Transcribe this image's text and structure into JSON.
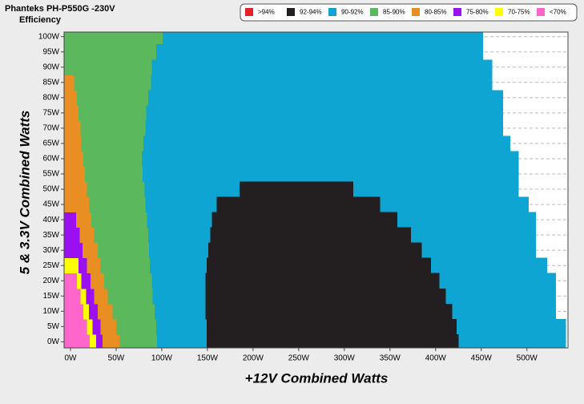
{
  "chart_data": {
    "type": "region",
    "title": "Phanteks PH-P550G -230V",
    "subtitle": "Efficiency",
    "x_label": "+12V Combined Watts",
    "y_label": "5 & 3.3V Combined Watts",
    "xlim": [
      -7,
      545
    ],
    "ylim": [
      -2,
      101.5
    ],
    "xticks": [
      {
        "value": 0,
        "label": "0W"
      },
      {
        "value": 50,
        "label": "50W"
      },
      {
        "value": 100,
        "label": "100W"
      },
      {
        "value": 150,
        "label": "150W"
      },
      {
        "value": 200,
        "label": "200W"
      },
      {
        "value": 250,
        "label": "250W"
      },
      {
        "value": 300,
        "label": "300W"
      },
      {
        "value": 350,
        "label": "350W"
      },
      {
        "value": 400,
        "label": "400W"
      },
      {
        "value": 450,
        "label": "450W"
      },
      {
        "value": 500,
        "label": "500W"
      }
    ],
    "yticks": [
      {
        "value": 0,
        "label": "0W"
      },
      {
        "value": 5,
        "label": "5W"
      },
      {
        "value": 10,
        "label": "10W"
      },
      {
        "value": 15,
        "label": "15W"
      },
      {
        "value": 20,
        "label": "20W"
      },
      {
        "value": 25,
        "label": "25W"
      },
      {
        "value": 30,
        "label": "30W"
      },
      {
        "value": 35,
        "label": "35W"
      },
      {
        "value": 40,
        "label": "40W"
      },
      {
        "value": 45,
        "label": "45W"
      },
      {
        "value": 50,
        "label": "50W"
      },
      {
        "value": 55,
        "label": "55W"
      },
      {
        "value": 60,
        "label": "60W"
      },
      {
        "value": 65,
        "label": "65W"
      },
      {
        "value": 70,
        "label": "70W"
      },
      {
        "value": 75,
        "label": "75W"
      },
      {
        "value": 80,
        "label": "80W"
      },
      {
        "value": 85,
        "label": "85W"
      },
      {
        "value": 90,
        "label": "90W"
      },
      {
        "value": 95,
        "label": "95W"
      },
      {
        "value": 100,
        "label": "100W"
      }
    ],
    "grid": true,
    "y": [
      0,
      5,
      10,
      15,
      20,
      25,
      30,
      35,
      40,
      45,
      50,
      55,
      60,
      65,
      70,
      75,
      80,
      85,
      90,
      95,
      100
    ],
    "series": [
      {
        "name": ">94%",
        "color": "#e8202a",
        "x_from": [
          null,
          null,
          null,
          null,
          null,
          null,
          null,
          null,
          null,
          null,
          null,
          null,
          null,
          null,
          null,
          null,
          null,
          null,
          null,
          null,
          null
        ],
        "x_to": [
          null,
          null,
          null,
          null,
          null,
          null,
          null,
          null,
          null,
          null,
          null,
          null,
          null,
          null,
          null,
          null,
          null,
          null,
          null,
          null,
          null
        ]
      },
      {
        "name": "92-94%",
        "color": "#231f20",
        "x_from": [
          149,
          149,
          148,
          148,
          148,
          149,
          151,
          153,
          155,
          160,
          185,
          null,
          null,
          null,
          null,
          null,
          null,
          null,
          null,
          null,
          null
        ],
        "x_to": [
          425,
          423,
          418,
          411,
          404,
          395,
          385,
          373,
          358,
          339,
          310,
          null,
          null,
          null,
          null,
          null,
          null,
          null,
          null,
          null,
          null
        ]
      },
      {
        "name": "90-92%",
        "color": "#0ea5d2",
        "x_from": [
          95,
          94,
          92,
          90,
          89,
          87,
          86,
          85,
          84,
          82,
          81,
          79,
          78,
          80,
          82,
          83,
          85,
          88,
          89,
          94,
          101
        ],
        "x_to": [
          543,
          543,
          532,
          532,
          532,
          522,
          510,
          510,
          510,
          502,
          491,
          491,
          491,
          482,
          474,
          474,
          474,
          462,
          462,
          452,
          452
        ]
      },
      {
        "name": "85-90%",
        "color": "#5bb85d",
        "x_from": [
          54,
          50,
          46,
          41,
          37,
          33,
          30,
          26,
          23,
          20,
          18,
          16,
          14,
          12,
          11,
          9,
          7,
          4,
          -7,
          -7,
          -7
        ],
        "x_to": [
          95,
          94,
          92,
          90,
          89,
          87,
          86,
          85,
          84,
          82,
          81,
          79,
          78,
          80,
          82,
          83,
          85,
          88,
          89,
          94,
          101
        ]
      },
      {
        "name": "80-85%",
        "color": "#e88e22",
        "x_from": [
          35,
          33,
          30,
          26,
          22,
          18,
          13,
          10,
          6,
          -7,
          -7,
          -7,
          -7,
          -7,
          -7,
          -7,
          -7,
          -7,
          null,
          null,
          null
        ],
        "x_to": [
          54,
          50,
          46,
          41,
          37,
          33,
          30,
          26,
          23,
          20,
          18,
          16,
          14,
          12,
          11,
          9,
          7,
          4,
          null,
          null,
          null
        ]
      },
      {
        "name": "75-80%",
        "color": "#9a10f0",
        "x_from": [
          28,
          24,
          20,
          17,
          12,
          9,
          -7,
          -7,
          -7,
          null,
          null,
          null,
          null,
          null,
          null,
          null,
          null,
          null,
          null,
          null,
          null
        ],
        "x_to": [
          35,
          33,
          30,
          26,
          22,
          18,
          13,
          10,
          6,
          null,
          null,
          null,
          null,
          null,
          null,
          null,
          null,
          null,
          null,
          null,
          null
        ]
      },
      {
        "name": "70-75%",
        "color": "#ffff00",
        "x_from": [
          21,
          18,
          14,
          11,
          7,
          -7,
          null,
          null,
          null,
          null,
          null,
          null,
          null,
          null,
          null,
          null,
          null,
          null,
          null,
          null,
          null
        ],
        "x_to": [
          28,
          24,
          20,
          17,
          12,
          9,
          null,
          null,
          null,
          null,
          null,
          null,
          null,
          null,
          null,
          null,
          null,
          null,
          null,
          null,
          null
        ]
      },
      {
        "name": "<70%",
        "color": "#ff66cc",
        "x_from": [
          -7,
          -7,
          -7,
          -7,
          -7,
          null,
          null,
          null,
          null,
          null,
          null,
          null,
          null,
          null,
          null,
          null,
          null,
          null,
          null,
          null,
          null
        ],
        "x_to": [
          21,
          18,
          14,
          11,
          7,
          null,
          null,
          null,
          null,
          null,
          null,
          null,
          null,
          null,
          null,
          null,
          null,
          null,
          null,
          null,
          null
        ]
      }
    ]
  }
}
